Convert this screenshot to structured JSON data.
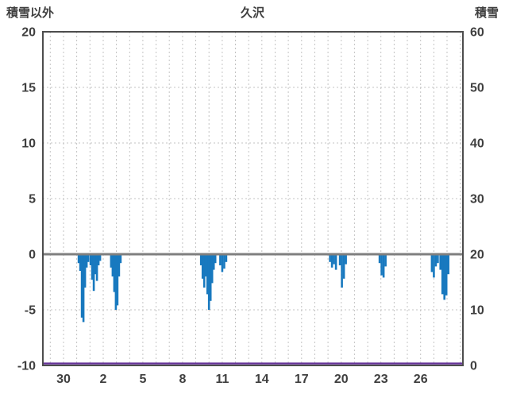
{
  "header": {
    "left_axis_title": "積雪以外",
    "chart_title": "久沢",
    "right_axis_title": "積雪"
  },
  "chart_data": {
    "type": "bar",
    "title": "久沢",
    "left_axis": {
      "label": "積雪以外",
      "min": -10,
      "max": 20,
      "ticks": [
        20,
        15,
        10,
        5,
        0,
        -5,
        -10
      ]
    },
    "right_axis": {
      "label": "積雪",
      "min": 0,
      "max": 60,
      "ticks": [
        60,
        50,
        40,
        30,
        20,
        10,
        0
      ]
    },
    "x_axis": {
      "tick_labels": [
        "30",
        "2",
        "5",
        "8",
        "11",
        "14",
        "17",
        "20",
        "23",
        "26"
      ],
      "tick_days": [
        0,
        3,
        6,
        9,
        12,
        15,
        18,
        21,
        24,
        27
      ],
      "day_min": -1.56,
      "day_max": 30.2
    },
    "grid": {
      "color": "#c3c3c3",
      "horizontal_at": [
        15,
        10,
        5,
        -5
      ]
    },
    "zero_line": {
      "value": 0,
      "color": "#7f7f7f",
      "width": 3
    },
    "frame_color": "#4d4d4d",
    "bars": {
      "color": "#1879bf",
      "points": [
        [
          1.15,
          -0.8
        ],
        [
          1.27,
          -1.5
        ],
        [
          1.39,
          -5.7
        ],
        [
          1.51,
          -6.1
        ],
        [
          1.63,
          -3.0
        ],
        [
          1.75,
          -1.2
        ],
        [
          1.87,
          -0.7
        ],
        [
          2.05,
          -1.0
        ],
        [
          2.17,
          -2.3
        ],
        [
          2.29,
          -3.3
        ],
        [
          2.41,
          -1.8
        ],
        [
          2.53,
          -2.4
        ],
        [
          2.65,
          -1.0
        ],
        [
          2.77,
          -0.6
        ],
        [
          3.6,
          -1.2
        ],
        [
          3.72,
          -2.0
        ],
        [
          3.84,
          -3.4
        ],
        [
          3.96,
          -5.0
        ],
        [
          4.08,
          -4.6
        ],
        [
          4.2,
          -2.0
        ],
        [
          4.32,
          -0.8
        ],
        [
          10.4,
          -1.0
        ],
        [
          10.52,
          -2.2
        ],
        [
          10.64,
          -3.0
        ],
        [
          10.76,
          -2.0
        ],
        [
          10.88,
          -3.6
        ],
        [
          11.0,
          -5.0
        ],
        [
          11.12,
          -4.2
        ],
        [
          11.24,
          -2.6
        ],
        [
          11.36,
          -1.4
        ],
        [
          11.48,
          -0.8
        ],
        [
          11.85,
          -1.0
        ],
        [
          12.0,
          -1.6
        ],
        [
          12.15,
          -1.3
        ],
        [
          12.3,
          -0.7
        ],
        [
          20.15,
          -0.7
        ],
        [
          20.3,
          -1.2
        ],
        [
          20.45,
          -0.9
        ],
        [
          20.6,
          -1.4
        ],
        [
          20.9,
          -1.0
        ],
        [
          21.05,
          -3.0
        ],
        [
          21.2,
          -2.2
        ],
        [
          21.35,
          -0.9
        ],
        [
          23.9,
          -0.8
        ],
        [
          24.05,
          -1.9
        ],
        [
          24.2,
          -2.1
        ],
        [
          24.35,
          -1.1
        ],
        [
          27.85,
          -1.6
        ],
        [
          28.0,
          -2.1
        ],
        [
          28.15,
          -1.1
        ],
        [
          28.3,
          -0.8
        ],
        [
          28.5,
          -1.4
        ],
        [
          28.65,
          -3.6
        ],
        [
          28.8,
          -4.1
        ],
        [
          28.95,
          -3.7
        ],
        [
          29.1,
          -1.8
        ]
      ]
    },
    "snow_line": {
      "axis": "right",
      "value": 0,
      "color": "#663399",
      "width": 2.4
    }
  }
}
